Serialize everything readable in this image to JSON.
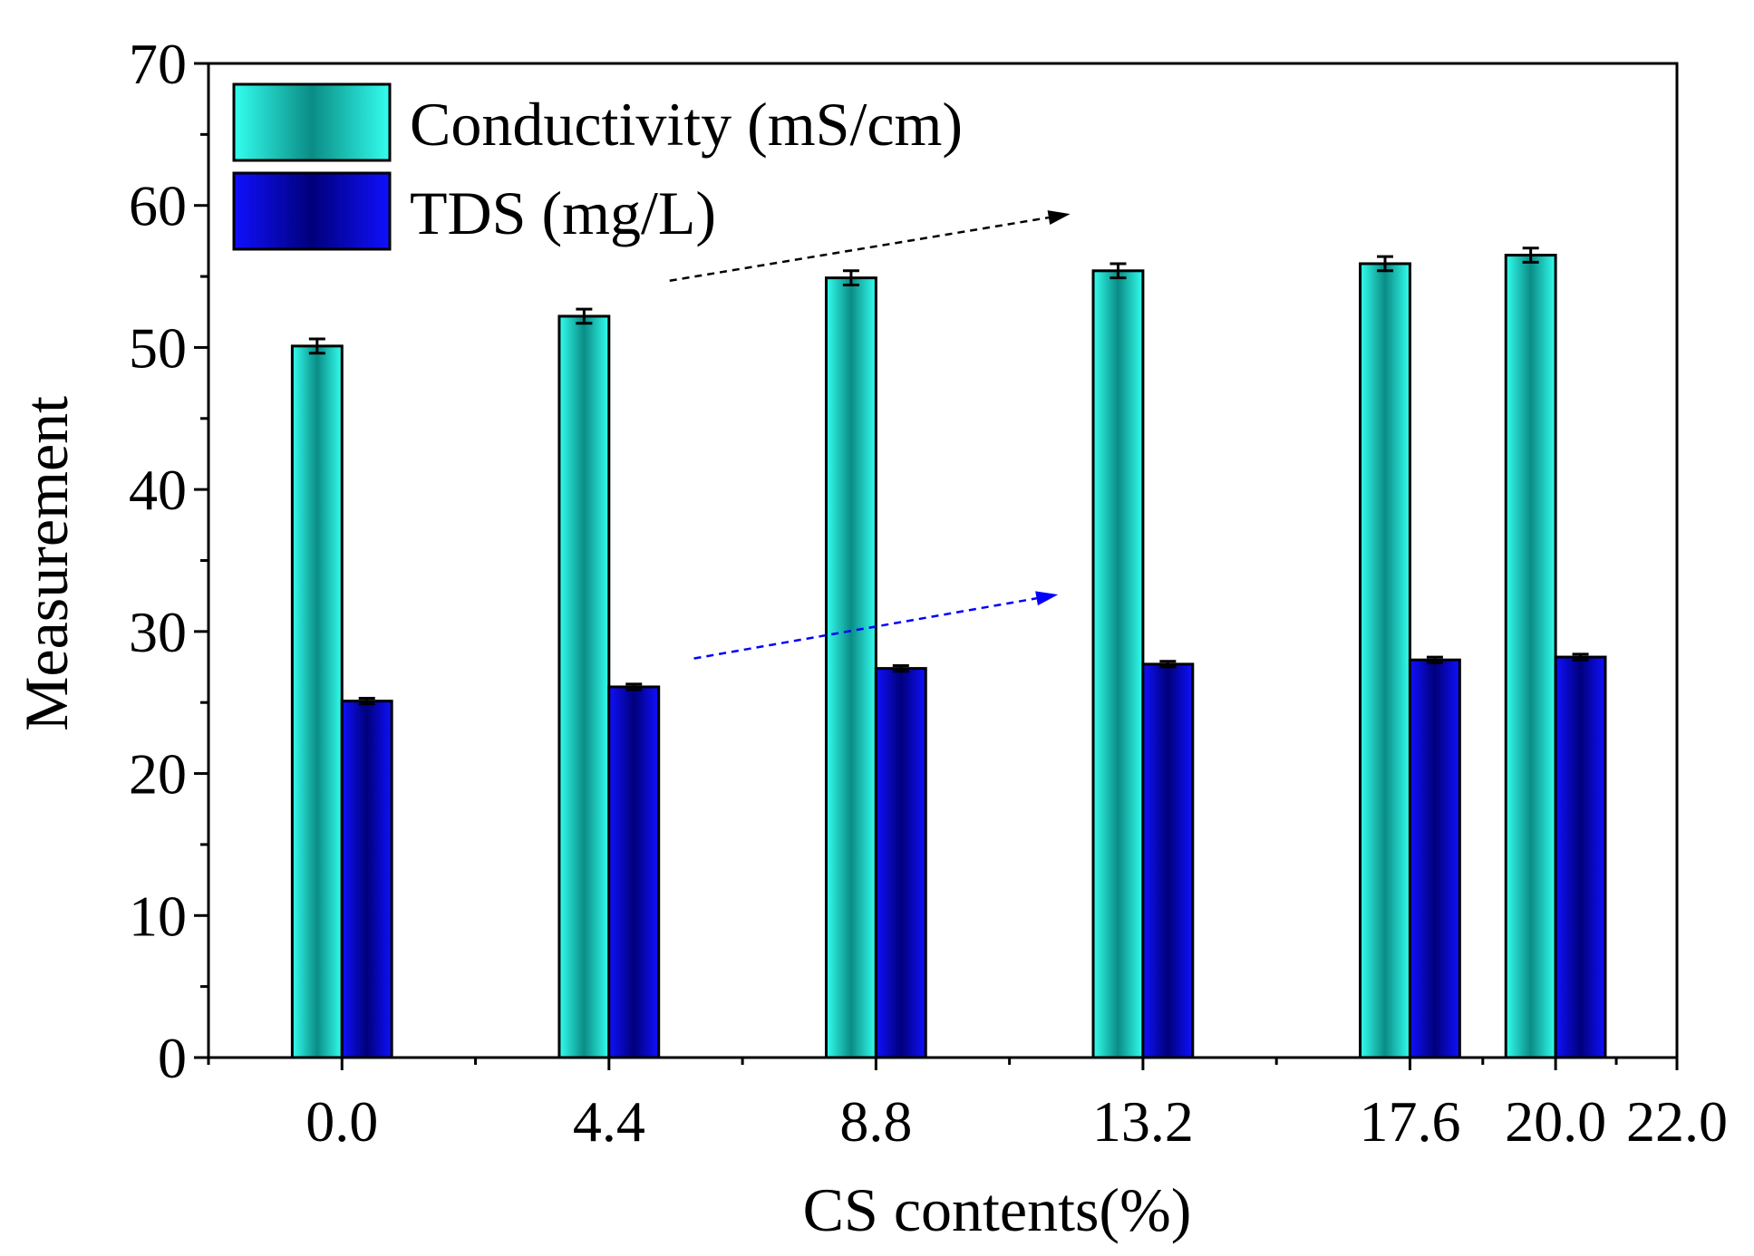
{
  "chart_data": {
    "type": "bar",
    "x": [
      0.0,
      4.4,
      8.8,
      13.2,
      17.6,
      20.0
    ],
    "x_tick_labels": [
      "0.0",
      "4.4",
      "8.8",
      "13.2",
      "17.6",
      "20.0",
      "22.0"
    ],
    "x_ticks": [
      0.0,
      4.4,
      8.8,
      13.2,
      17.6,
      20.0,
      22.0
    ],
    "xlim": [
      -2.2,
      22.0
    ],
    "ylim": [
      0,
      70
    ],
    "y_ticks": [
      0,
      10,
      20,
      30,
      40,
      50,
      60,
      70
    ],
    "y_tick_labels": [
      "0",
      "10",
      "20",
      "30",
      "40",
      "50",
      "60",
      "70"
    ],
    "xlabel": "CS contents(%)",
    "ylabel": "Measurement",
    "legend_position": "top-left",
    "series": [
      {
        "name": "Conductivity (mS/cm)",
        "values": [
          50.1,
          52.2,
          54.9,
          55.4,
          55.9,
          56.5
        ],
        "errors": [
          0.5,
          0.5,
          0.5,
          0.5,
          0.5,
          0.5
        ],
        "color_light": "#33ffee",
        "color_dark": "#0a8c86"
      },
      {
        "name": "TDS (mg/L)",
        "values": [
          25.1,
          26.1,
          27.4,
          27.7,
          28.0,
          28.2
        ],
        "errors": [
          0.2,
          0.2,
          0.2,
          0.2,
          0.2,
          0.2
        ],
        "color_light": "#1010ff",
        "color_dark": "#00007a"
      }
    ],
    "trend_arrows": [
      {
        "series": "Conductivity (mS/cm)",
        "color": "#000000",
        "from": [
          5.4,
          54.7
        ],
        "to": [
          12.0,
          59.4
        ]
      },
      {
        "series": "TDS (mg/L)",
        "color": "#0000ff",
        "from": [
          5.8,
          28.1
        ],
        "to": [
          11.8,
          32.6
        ]
      }
    ]
  }
}
